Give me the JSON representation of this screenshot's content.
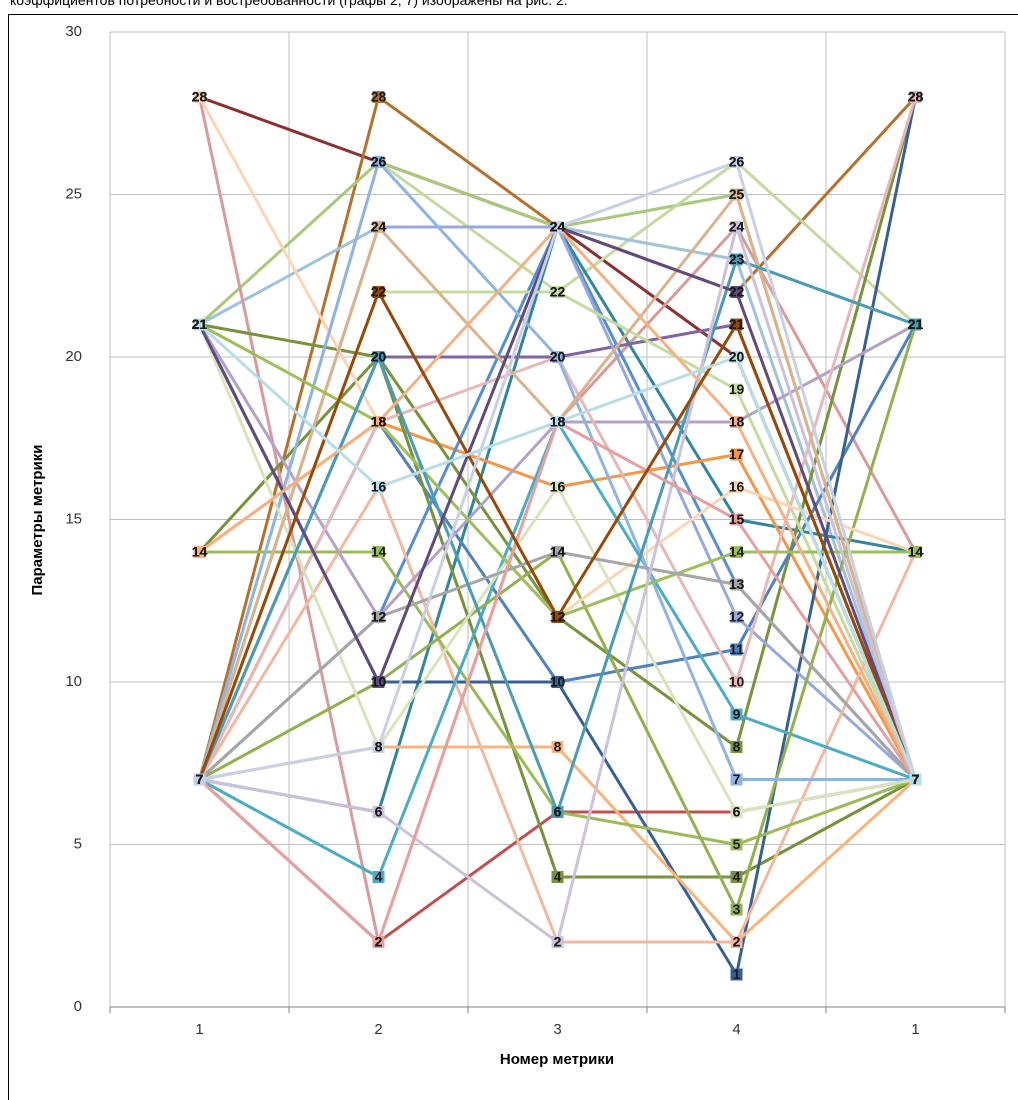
{
  "intro_text": "коэффициентов потребности и востребованности (графы 2, 7) изображены на рис. 2.",
  "chart_data": {
    "type": "line",
    "y_label": "Параметры  метрики",
    "x_label": "Номер метрики",
    "categories": [
      "1",
      "2",
      "3",
      "4",
      "1"
    ],
    "ylim": [
      0,
      30
    ],
    "yticks": [
      0,
      5,
      10,
      15,
      20,
      25,
      30
    ],
    "grid": true,
    "data_labels": true,
    "series": [
      {
        "color": "#8b2f2f",
        "values": [
          28,
          26,
          24,
          20,
          7
        ]
      },
      {
        "color": "#b5702e",
        "values": [
          7,
          28,
          24,
          22,
          28
        ]
      },
      {
        "color": "#a9c97a",
        "values": [
          21,
          26,
          24,
          25,
          7
        ]
      },
      {
        "color": "#c6d9a0",
        "values": [
          7,
          26,
          22,
          26,
          21
        ]
      },
      {
        "color": "#9fc3d8",
        "values": [
          21,
          24,
          24,
          23,
          7
        ]
      },
      {
        "color": "#d99a9a",
        "values": [
          28,
          2,
          18,
          24,
          14
        ]
      },
      {
        "color": "#c0504d",
        "values": [
          7,
          2,
          6,
          6,
          7
        ]
      },
      {
        "color": "#31859c",
        "values": [
          7,
          6,
          24,
          15,
          14
        ]
      },
      {
        "color": "#f79646",
        "values": [
          14,
          18,
          16,
          17,
          7
        ]
      },
      {
        "color": "#77933c",
        "values": [
          21,
          20,
          12,
          8,
          28
        ]
      },
      {
        "color": "#8064a2",
        "values": [
          7,
          20,
          20,
          21,
          7
        ]
      },
      {
        "color": "#4f81bd",
        "values": [
          7,
          18,
          10,
          11,
          21
        ]
      },
      {
        "color": "#76923c",
        "values": [
          14,
          20,
          4,
          4,
          7
        ]
      },
      {
        "color": "#558ed5",
        "values": [
          7,
          12,
          24,
          13,
          7
        ]
      },
      {
        "color": "#376092",
        "values": [
          21,
          10,
          10,
          1,
          28
        ]
      },
      {
        "color": "#fab37a",
        "values": [
          7,
          8,
          8,
          2,
          7
        ]
      },
      {
        "color": "#95a9dc",
        "values": [
          7,
          24,
          24,
          12,
          7
        ]
      },
      {
        "color": "#c4dca0",
        "values": [
          7,
          22,
          22,
          19,
          7
        ]
      },
      {
        "color": "#f2b8a0",
        "values": [
          7,
          16,
          2,
          2,
          14
        ]
      },
      {
        "color": "#9bbb59",
        "values": [
          14,
          14,
          6,
          5,
          7
        ]
      },
      {
        "color": "#4bacc6",
        "values": [
          7,
          4,
          18,
          9,
          7
        ]
      },
      {
        "color": "#b3a2c7",
        "values": [
          21,
          12,
          18,
          18,
          21
        ]
      },
      {
        "color": "#92b050",
        "values": [
          7,
          10,
          14,
          3,
          21
        ]
      },
      {
        "color": "#e6b9b8",
        "values": [
          7,
          18,
          20,
          10,
          28
        ]
      },
      {
        "color": "#fcd5b5",
        "values": [
          28,
          18,
          12,
          16,
          14
        ]
      },
      {
        "color": "#8eb4e3",
        "values": [
          7,
          26,
          20,
          7,
          7
        ]
      },
      {
        "color": "#d7e4bd",
        "values": [
          21,
          8,
          16,
          6,
          7
        ]
      },
      {
        "color": "#d9b38c",
        "values": [
          7,
          24,
          18,
          25,
          7
        ]
      },
      {
        "color": "#9cbf5a",
        "values": [
          21,
          18,
          12,
          14,
          14
        ]
      },
      {
        "color": "#a6a6a6",
        "values": [
          7,
          12,
          14,
          13,
          7
        ]
      },
      {
        "color": "#4a9bb5",
        "values": [
          7,
          20,
          6,
          23,
          21
        ]
      },
      {
        "color": "#604a7b",
        "values": [
          21,
          10,
          24,
          22,
          7
        ]
      },
      {
        "color": "#ccc1da",
        "values": [
          7,
          6,
          2,
          24,
          7
        ]
      },
      {
        "color": "#e6a0a0",
        "values": [
          7,
          2,
          18,
          15,
          7
        ]
      },
      {
        "color": "#f4b183",
        "values": [
          14,
          18,
          24,
          18,
          7
        ]
      },
      {
        "color": "#984807",
        "values": [
          7,
          22,
          12,
          21,
          7
        ]
      },
      {
        "color": "#c6d0e6",
        "values": [
          7,
          8,
          24,
          26,
          7
        ]
      },
      {
        "color": "#b7dee8",
        "values": [
          21,
          16,
          18,
          20,
          7
        ]
      }
    ]
  }
}
